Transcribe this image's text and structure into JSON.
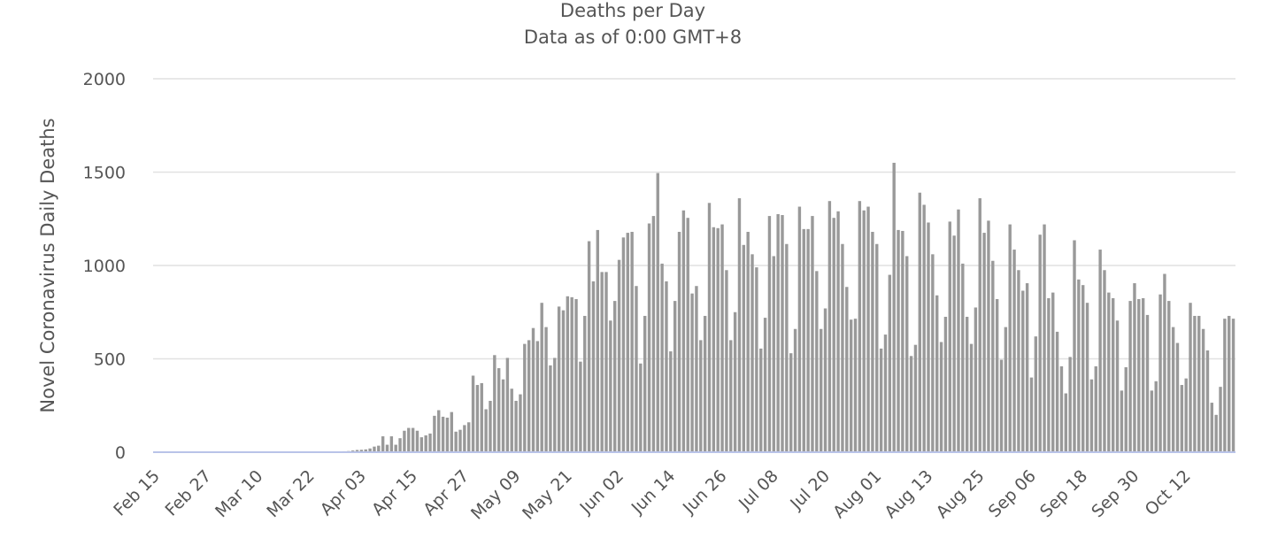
{
  "chart_data": {
    "type": "bar",
    "title": "Deaths per Day",
    "subtitle": "Data as of 0:00 GMT+8",
    "ylabel": "Novel Coronavirus Daily Deaths",
    "xlabel": "",
    "ylim": [
      0,
      2000
    ],
    "yticks": [
      "0",
      "500",
      "1000",
      "1500",
      "2000"
    ],
    "grid": true,
    "legend": "none",
    "x_start": "Feb 15",
    "x_ticks": [
      "Feb 15",
      "Feb 27",
      "Mar 10",
      "Mar 22",
      "Apr 03",
      "Apr 15",
      "Apr 27",
      "May 09",
      "May 21",
      "Jun 02",
      "Jun 14",
      "Jun 26",
      "Jul 08",
      "Jul 20",
      "Aug 01",
      "Aug 13",
      "Aug 25",
      "Sep 06",
      "Sep 18",
      "Sep 30",
      "Oct 12"
    ],
    "bar_color": "#999999",
    "baseline_color": "#b9c3e8",
    "values": [
      0,
      0,
      0,
      0,
      0,
      0,
      0,
      0,
      0,
      0,
      0,
      0,
      0,
      0,
      0,
      0,
      0,
      0,
      0,
      0,
      0,
      0,
      0,
      0,
      0,
      0,
      0,
      0,
      0,
      0,
      0,
      0,
      0,
      0,
      0,
      0,
      0,
      0,
      0,
      0,
      1,
      2,
      2,
      3,
      5,
      6,
      9,
      12,
      13,
      15,
      20,
      30,
      35,
      85,
      40,
      85,
      40,
      75,
      115,
      130,
      130,
      115,
      80,
      90,
      100,
      195,
      225,
      190,
      185,
      215,
      110,
      120,
      145,
      160,
      410,
      360,
      370,
      230,
      275,
      520,
      450,
      390,
      505,
      340,
      275,
      310,
      580,
      600,
      665,
      595,
      800,
      670,
      465,
      505,
      780,
      760,
      835,
      830,
      820,
      485,
      730,
      1130,
      915,
      1190,
      965,
      965,
      705,
      810,
      1030,
      1150,
      1175,
      1180,
      890,
      475,
      730,
      1225,
      1265,
      1495,
      1010,
      915,
      540,
      810,
      1180,
      1295,
      1255,
      850,
      890,
      600,
      730,
      1335,
      1205,
      1200,
      1220,
      975,
      600,
      750,
      1360,
      1110,
      1180,
      1060,
      990,
      555,
      720,
      1265,
      1050,
      1275,
      1270,
      1115,
      530,
      660,
      1315,
      1195,
      1195,
      1265,
      970,
      660,
      770,
      1345,
      1255,
      1290,
      1115,
      885,
      710,
      715,
      1345,
      1295,
      1315,
      1180,
      1115,
      555,
      630,
      950,
      1550,
      1190,
      1185,
      1050,
      515,
      575,
      1390,
      1325,
      1230,
      1060,
      840,
      590,
      725,
      1235,
      1160,
      1300,
      1010,
      725,
      580,
      775,
      1360,
      1175,
      1240,
      1025,
      820,
      495,
      670,
      1220,
      1085,
      975,
      865,
      905,
      400,
      620,
      1165,
      1220,
      825,
      855,
      645,
      460,
      315,
      510,
      1135,
      925,
      895,
      800,
      390,
      460,
      1085,
      975,
      855,
      825,
      705,
      330,
      455,
      810,
      905,
      820,
      825,
      735,
      330,
      380,
      845,
      955,
      810,
      670,
      585,
      360,
      395,
      800,
      730,
      730,
      660,
      545,
      265,
      200,
      350,
      715,
      730,
      715
    ]
  }
}
